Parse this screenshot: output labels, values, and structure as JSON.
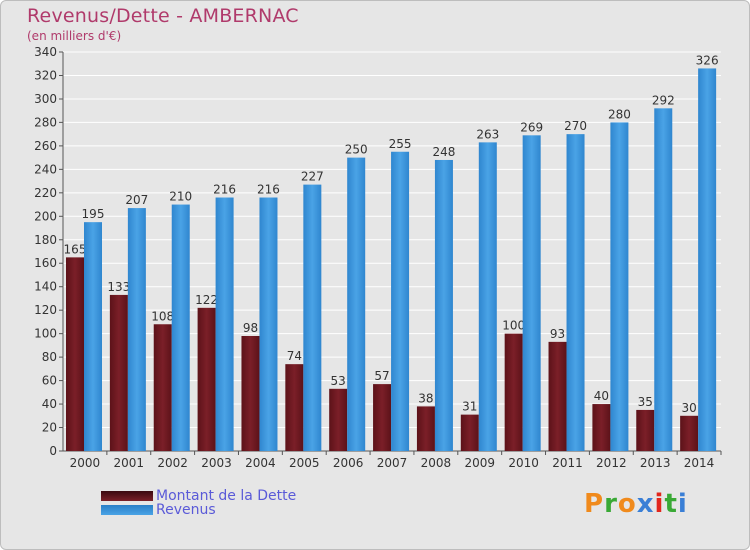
{
  "title": "Revenus/Dette - AMBERNAC",
  "subtitle": "(en milliers d'€)",
  "colors": {
    "title": "#b03a6b",
    "dette": "#7b1f28",
    "revenus": "#4aa3e6",
    "legend_text": "#5a5ad8"
  },
  "legend": {
    "items": [
      {
        "label": "Montant de la Dette",
        "color_key": "dette",
        "icon": "legend-swatch-dette"
      },
      {
        "label": "Revenus",
        "color_key": "revenus",
        "icon": "legend-swatch-revenus"
      }
    ]
  },
  "logo": {
    "text": "Proxiti",
    "colors": [
      "#f08a1c",
      "#39a935",
      "#f08a1c",
      "#3a7fd6",
      "#e2261c",
      "#39a935",
      "#3a7fd6"
    ]
  },
  "chart_data": {
    "type": "bar",
    "title": "Revenus/Dette - AMBERNAC",
    "subtitle": "(en milliers d'€)",
    "categories": [
      "2000",
      "2001",
      "2002",
      "2003",
      "2004",
      "2005",
      "2006",
      "2007",
      "2008",
      "2009",
      "2010",
      "2011",
      "2012",
      "2013",
      "2014"
    ],
    "series": [
      {
        "name": "Montant de la Dette",
        "values": [
          165,
          133,
          108,
          122,
          98,
          74,
          53,
          57,
          38,
          31,
          100,
          93,
          40,
          35,
          30
        ]
      },
      {
        "name": "Revenus",
        "values": [
          195,
          207,
          210,
          216,
          216,
          227,
          250,
          255,
          248,
          263,
          269,
          270,
          280,
          292,
          326
        ]
      }
    ],
    "ylim": [
      0,
      340
    ],
    "yticks": [
      0,
      20,
      40,
      60,
      80,
      100,
      120,
      140,
      160,
      180,
      200,
      220,
      240,
      260,
      280,
      300,
      320,
      340
    ],
    "grid": true,
    "legend_position": "bottom-left"
  }
}
